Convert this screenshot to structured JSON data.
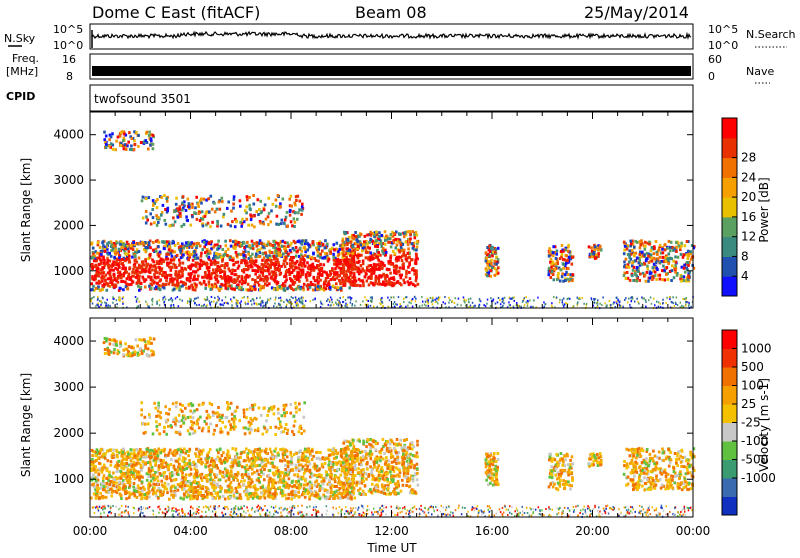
{
  "header": {
    "title": "Dome C East (fitACF)",
    "beam": "Beam 08",
    "date": "25/May/2014"
  },
  "strip_labels": {
    "nsky": "N.Sky",
    "nsky_ticks": [
      "10^5",
      "10^0"
    ],
    "nsearch": "N.Search",
    "nsearch_ticks": [
      "10^5",
      "10^0"
    ],
    "freq_line1": "Freq.",
    "freq_line2": "[MHz]",
    "freq_ticks": [
      "16",
      "8"
    ],
    "nave": "Nave",
    "nave_ticks": [
      "60",
      "0"
    ],
    "cpid": "CPID",
    "cpid_value": "twofsound 3501"
  },
  "chart_data": [
    {
      "type": "heatmap",
      "name": "power-panel",
      "ylabel": "Slant Range [km]",
      "yticks": [
        1000,
        2000,
        3000,
        4000
      ],
      "ylim": [
        180,
        4500
      ],
      "xlim": [
        0,
        24
      ],
      "colorbar_label": "Power [dB]",
      "colorbar_ticks": [
        "4",
        "8",
        "12",
        "16",
        "20",
        "24",
        "28"
      ],
      "colorbar_colors": [
        "#1010ff",
        "#2050b0",
        "#3a8a80",
        "#5aa060",
        "#e8c000",
        "#f5a000",
        "#f07000",
        "#e83000",
        "#ff0000"
      ]
    },
    {
      "type": "heatmap",
      "name": "velocity-panel",
      "ylabel": "Slant Range [km]",
      "yticks": [
        1000,
        2000,
        3000,
        4000
      ],
      "ylim": [
        180,
        4500
      ],
      "xlim": [
        0,
        24
      ],
      "xlabel": "Time UT",
      "xticks": [
        "00:00",
        "04:00",
        "08:00",
        "12:00",
        "16:00",
        "20:00",
        "00:00"
      ],
      "colorbar_label": "Velocity [m s-1]",
      "colorbar_ticks": [
        "1000",
        "500",
        "100",
        "25",
        "-25",
        "-100",
        "-500",
        "-1000"
      ],
      "colorbar_colors": [
        "#1030c0",
        "#3a6ab0",
        "#3a9a70",
        "#60c040",
        "#c8c8c8",
        "#f5c000",
        "#f5a000",
        "#f07000",
        "#f03000",
        "#ff0000"
      ]
    }
  ]
}
